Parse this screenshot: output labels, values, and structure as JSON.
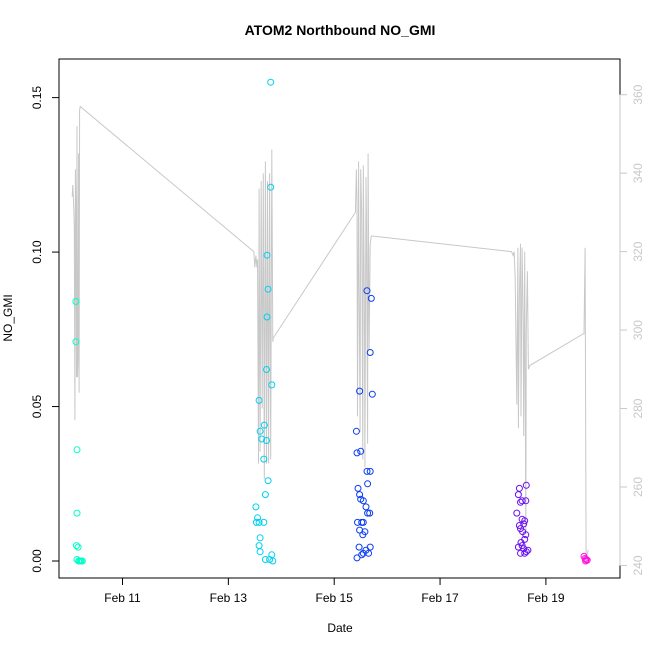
{
  "chart_data": {
    "type": "scatter",
    "title": "ATOM2 Northbound NO_GMI",
    "xlabel": "Date",
    "ylabel": "NO_GMI",
    "x_ticks": [
      {
        "label": "Feb 11",
        "value": 11
      },
      {
        "label": "Feb 13",
        "value": 13
      },
      {
        "label": "Feb 15",
        "value": 15
      },
      {
        "label": "Feb 17",
        "value": 17
      },
      {
        "label": "Feb 19",
        "value": 19
      }
    ],
    "y_ticks": [
      {
        "label": "0.00",
        "value": 0.0
      },
      {
        "label": "0.05",
        "value": 0.05
      },
      {
        "label": "0.10",
        "value": 0.1
      },
      {
        "label": "0.15",
        "value": 0.15
      }
    ],
    "y2_ticks": [
      {
        "label": "240",
        "value": 240
      },
      {
        "label": "260",
        "value": 260
      },
      {
        "label": "280",
        "value": 280
      },
      {
        "label": "300",
        "value": 300
      },
      {
        "label": "320",
        "value": 320
      },
      {
        "label": "340",
        "value": 340
      },
      {
        "label": "360",
        "value": 360
      }
    ],
    "xlim": [
      9.8,
      20.4
    ],
    "ylim": [
      -0.0055,
      0.1625
    ],
    "y2lim": [
      236.8,
      369.1
    ],
    "grid": false,
    "point_colors": [
      "#00ffcc",
      "#00ccff",
      "#0033ff",
      "#7a00ff",
      "#ff00e0"
    ],
    "line_color": "#c8c8c8",
    "series": [
      {
        "color": "#00ffc8",
        "points": [
          [
            10.12,
            0.084
          ],
          [
            10.12,
            0.071
          ],
          [
            10.14,
            0.036
          ],
          [
            10.14,
            0.0155
          ],
          [
            10.13,
            0.005
          ],
          [
            10.16,
            0.0045
          ],
          [
            10.14,
            0.0005
          ],
          [
            10.18,
            0.0
          ],
          [
            10.2,
            0.0
          ],
          [
            10.22,
            0.0
          ],
          [
            10.24,
            0.0
          ],
          [
            10.17,
            0.0
          ]
        ]
      },
      {
        "color": "#00d0f0",
        "points": [
          [
            13.8,
            0.155
          ],
          [
            13.8,
            0.121
          ],
          [
            13.73,
            0.099
          ],
          [
            13.75,
            0.088
          ],
          [
            13.73,
            0.079
          ],
          [
            13.72,
            0.062
          ],
          [
            13.82,
            0.057
          ],
          [
            13.58,
            0.052
          ],
          [
            13.68,
            0.044
          ],
          [
            13.6,
            0.042
          ],
          [
            13.63,
            0.0395
          ],
          [
            13.72,
            0.039
          ],
          [
            13.67,
            0.033
          ],
          [
            13.75,
            0.026
          ],
          [
            13.7,
            0.0215
          ],
          [
            13.52,
            0.0175
          ],
          [
            13.55,
            0.014
          ],
          [
            13.53,
            0.0125
          ],
          [
            13.58,
            0.0125
          ],
          [
            13.67,
            0.0125
          ],
          [
            13.6,
            0.0075
          ],
          [
            13.58,
            0.005
          ],
          [
            13.7,
            0.0005
          ],
          [
            13.78,
            0.0005
          ],
          [
            13.82,
            0.002
          ],
          [
            13.84,
            0.0
          ],
          [
            13.6,
            0.003
          ]
        ]
      },
      {
        "color": "#0a3cf5",
        "points": [
          [
            15.62,
            0.0875
          ],
          [
            15.7,
            0.085
          ],
          [
            15.68,
            0.0675
          ],
          [
            15.72,
            0.054
          ],
          [
            15.48,
            0.055
          ],
          [
            15.42,
            0.042
          ],
          [
            15.43,
            0.035
          ],
          [
            15.5,
            0.0355
          ],
          [
            15.62,
            0.029
          ],
          [
            15.68,
            0.029
          ],
          [
            15.63,
            0.025
          ],
          [
            15.45,
            0.0235
          ],
          [
            15.48,
            0.0215
          ],
          [
            15.5,
            0.02
          ],
          [
            15.55,
            0.0195
          ],
          [
            15.6,
            0.0175
          ],
          [
            15.63,
            0.0155
          ],
          [
            15.67,
            0.0155
          ],
          [
            15.44,
            0.0125
          ],
          [
            15.52,
            0.0125
          ],
          [
            15.55,
            0.0125
          ],
          [
            15.48,
            0.01
          ],
          [
            15.58,
            0.0095
          ],
          [
            15.54,
            0.0085
          ],
          [
            15.47,
            0.0045
          ],
          [
            15.68,
            0.0045
          ],
          [
            15.6,
            0.0035
          ],
          [
            15.55,
            0.0025
          ],
          [
            15.65,
            0.0025
          ],
          [
            15.52,
            0.002
          ],
          [
            15.43,
            0.001
          ]
        ]
      },
      {
        "color": "#6a10f0",
        "points": [
          [
            18.5,
            0.0235
          ],
          [
            18.63,
            0.0245
          ],
          [
            18.48,
            0.0215
          ],
          [
            18.55,
            0.0195
          ],
          [
            18.62,
            0.0195
          ],
          [
            18.52,
            0.019
          ],
          [
            18.45,
            0.0155
          ],
          [
            18.55,
            0.0135
          ],
          [
            18.58,
            0.012
          ],
          [
            18.6,
            0.013
          ],
          [
            18.5,
            0.0115
          ],
          [
            18.52,
            0.0105
          ],
          [
            18.56,
            0.0095
          ],
          [
            18.62,
            0.0085
          ],
          [
            18.6,
            0.007
          ],
          [
            18.53,
            0.006
          ],
          [
            18.55,
            0.005
          ],
          [
            18.48,
            0.0045
          ],
          [
            18.58,
            0.004
          ],
          [
            18.63,
            0.003
          ],
          [
            18.52,
            0.0025
          ],
          [
            18.66,
            0.0035
          ],
          [
            18.6,
            0.0025
          ]
        ]
      },
      {
        "color": "#ff10e0",
        "points": [
          [
            19.72,
            0.0015
          ],
          [
            19.74,
            0.0008
          ],
          [
            19.76,
            0.0005
          ],
          [
            19.78,
            0.0003
          ],
          [
            19.75,
            0.0
          ]
        ]
      }
    ],
    "line_series": {
      "axis": "right",
      "points": [
        [
          10.05,
          334
        ],
        [
          10.06,
          337
        ],
        [
          10.08,
          331
        ],
        [
          10.09,
          326
        ],
        [
          10.1,
          277
        ],
        [
          10.11,
          341
        ],
        [
          10.12,
          332
        ],
        [
          10.13,
          288
        ],
        [
          10.14,
          352
        ],
        [
          10.15,
          288
        ],
        [
          10.16,
          293
        ],
        [
          10.17,
          345
        ],
        [
          10.18,
          284
        ],
        [
          10.19,
          356
        ],
        [
          10.2,
          357
        ],
        [
          13.48,
          320
        ],
        [
          13.5,
          316
        ],
        [
          13.52,
          319
        ],
        [
          13.54,
          316
        ],
        [
          13.55,
          318
        ],
        [
          13.57,
          266
        ],
        [
          13.58,
          336
        ],
        [
          13.6,
          269
        ],
        [
          13.62,
          338
        ],
        [
          13.64,
          280
        ],
        [
          13.66,
          340
        ],
        [
          13.68,
          262
        ],
        [
          13.7,
          343
        ],
        [
          13.72,
          266
        ],
        [
          13.74,
          338
        ],
        [
          13.76,
          266
        ],
        [
          13.78,
          340
        ],
        [
          13.8,
          267
        ],
        [
          13.82,
          346
        ],
        [
          13.84,
          297
        ],
        [
          13.85,
          298
        ],
        [
          15.4,
          330
        ],
        [
          15.42,
          341
        ],
        [
          15.43,
          332
        ],
        [
          15.44,
          278
        ],
        [
          15.46,
          343
        ],
        [
          15.47,
          312
        ],
        [
          15.49,
          274
        ],
        [
          15.5,
          341
        ],
        [
          15.52,
          330
        ],
        [
          15.54,
          267
        ],
        [
          15.55,
          342
        ],
        [
          15.57,
          306
        ],
        [
          15.58,
          265
        ],
        [
          15.6,
          339
        ],
        [
          15.61,
          327
        ],
        [
          15.63,
          271
        ],
        [
          15.64,
          345
        ],
        [
          15.66,
          295
        ],
        [
          15.68,
          322
        ],
        [
          15.7,
          324
        ],
        [
          18.35,
          320
        ],
        [
          18.38,
          319
        ],
        [
          18.4,
          320
        ],
        [
          18.42,
          313
        ],
        [
          18.45,
          281
        ],
        [
          18.47,
          321
        ],
        [
          18.48,
          275
        ],
        [
          18.5,
          309
        ],
        [
          18.52,
          322
        ],
        [
          18.53,
          278
        ],
        [
          18.55,
          321
        ],
        [
          18.57,
          304
        ],
        [
          18.58,
          273
        ],
        [
          18.6,
          320
        ],
        [
          18.62,
          248
        ],
        [
          18.63,
          300
        ],
        [
          18.65,
          315
        ],
        [
          18.67,
          290
        ],
        [
          18.7,
          291
        ],
        [
          19.7,
          299
        ],
        [
          19.72,
          299
        ],
        [
          19.74,
          321
        ],
        [
          19.76,
          241
        ],
        [
          19.78,
          243
        ],
        [
          19.8,
          244
        ]
      ]
    }
  }
}
